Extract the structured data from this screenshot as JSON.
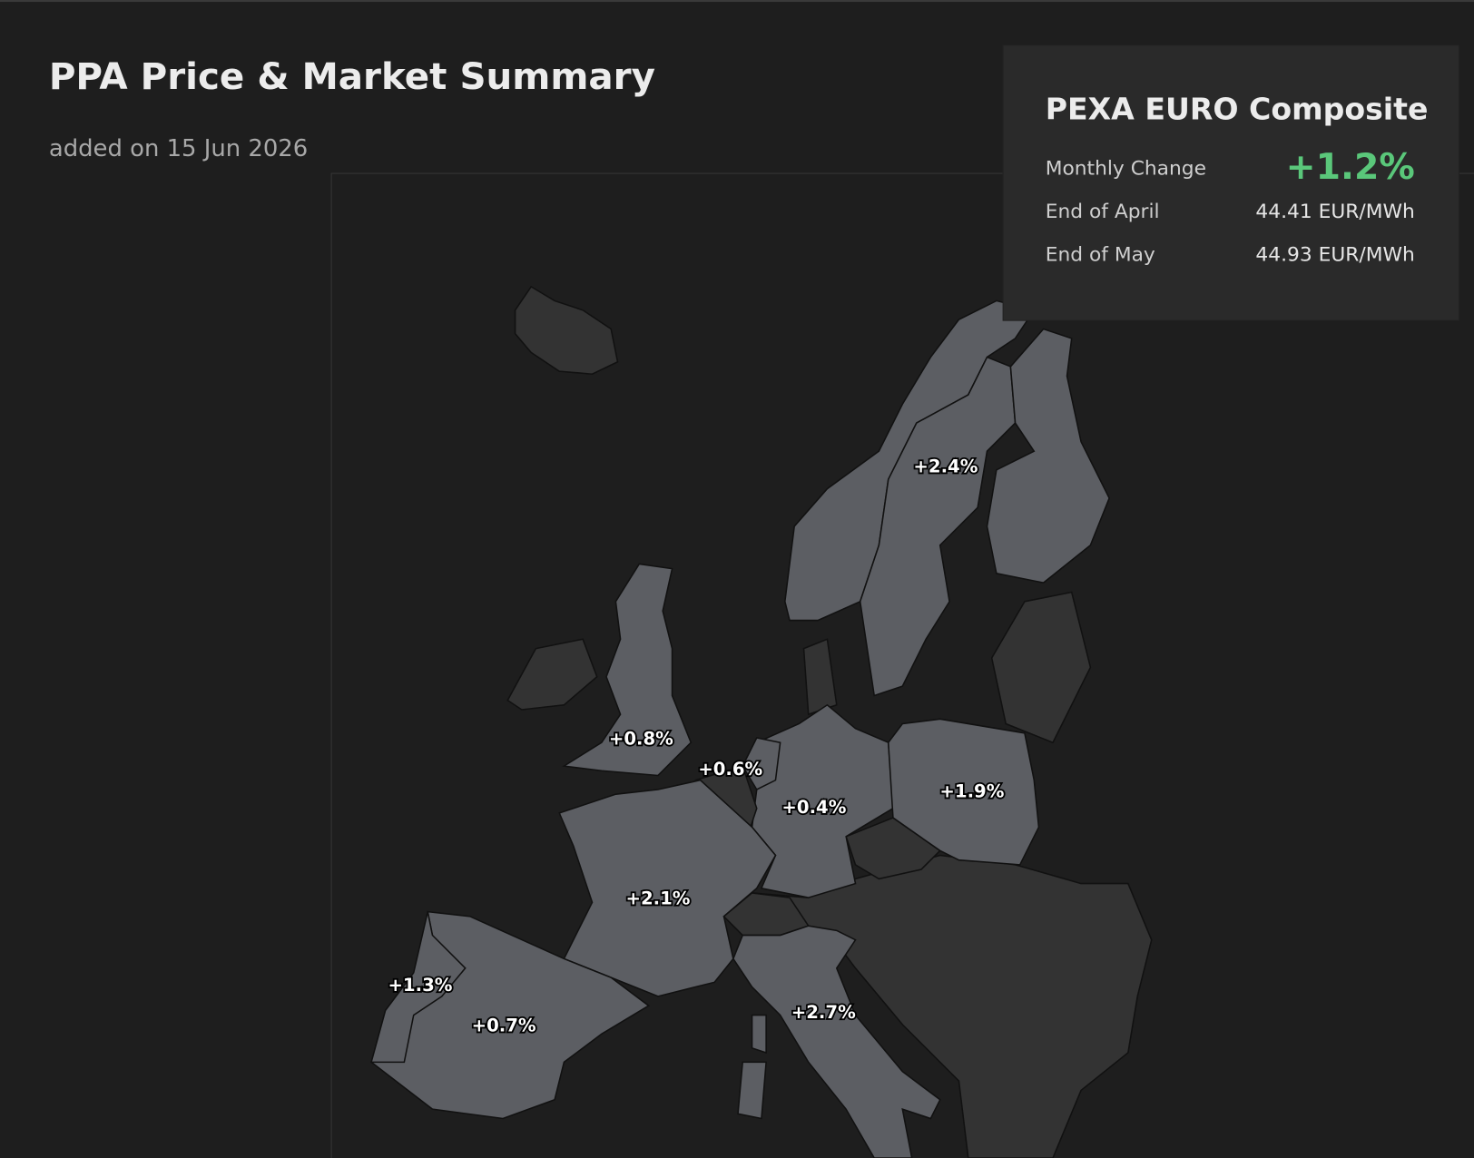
{
  "header": {
    "title": "PPA Price & Market Summary",
    "subtitle": "added on 15 Jun 2026"
  },
  "card": {
    "title": "PEXA EURO Composite",
    "rows": [
      {
        "label": "Monthly Change",
        "value": "+1.2%"
      },
      {
        "label": "End of April",
        "value": "44.41 EUR/MWh"
      },
      {
        "label": "End of May",
        "value": "44.93 EUR/MWh"
      }
    ]
  },
  "map": {
    "labels": [
      "+2.4%",
      "+0.8%",
      "+0.6%",
      "+0.4%",
      "+1.9%",
      "+2.1%",
      "+1.3%",
      "+0.7%",
      "+2.7%"
    ]
  }
}
